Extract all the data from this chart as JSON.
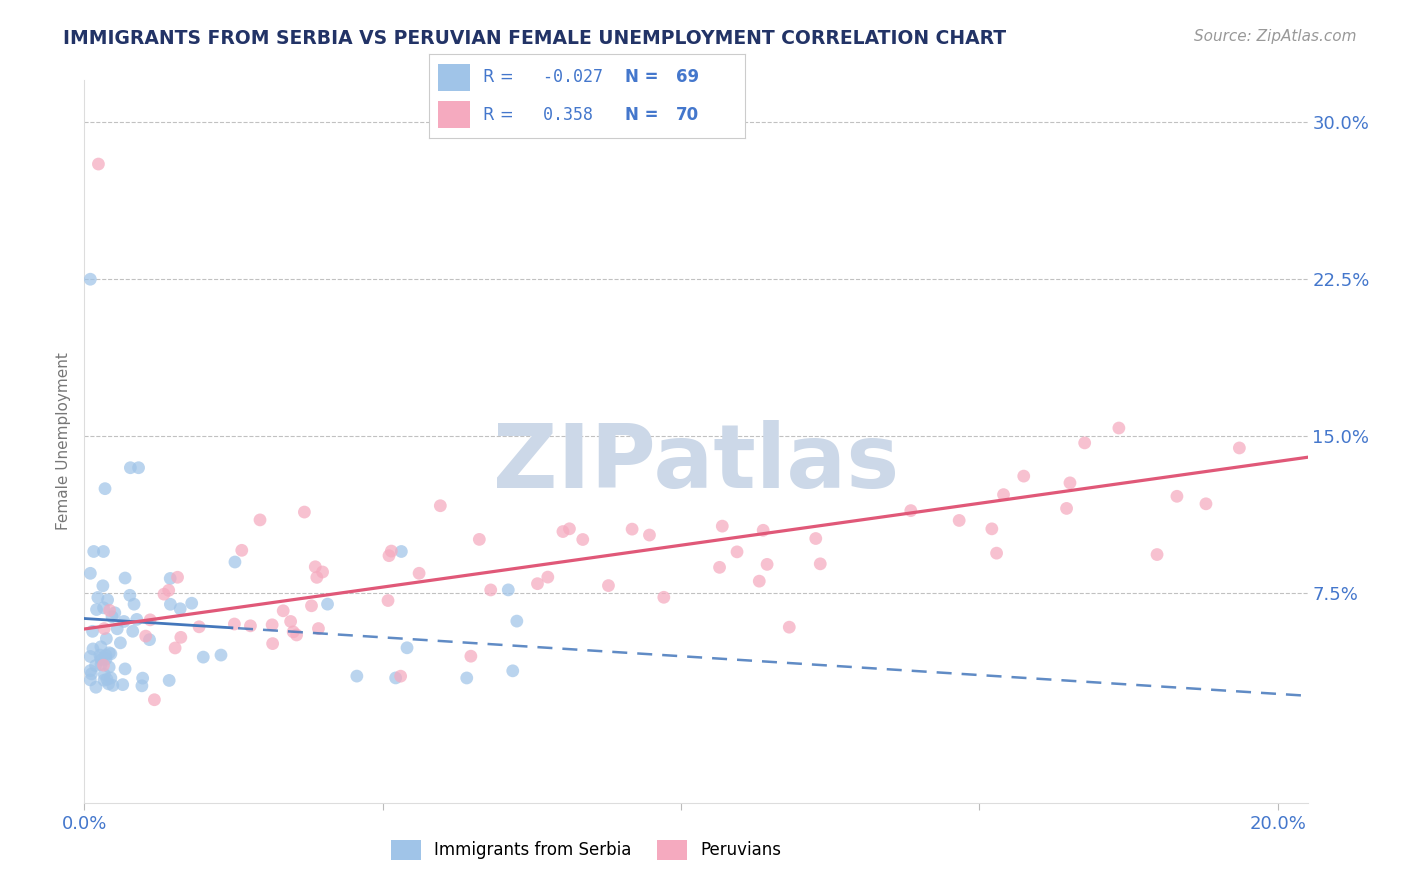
{
  "title": "IMMIGRANTS FROM SERBIA VS PERUVIAN FEMALE UNEMPLOYMENT CORRELATION CHART",
  "source": "Source: ZipAtlas.com",
  "ylabel": "Female Unemployment",
  "xlim": [
    0.0,
    0.205
  ],
  "ylim": [
    -0.025,
    0.32
  ],
  "ytick_vals": [
    0.075,
    0.15,
    0.225,
    0.3
  ],
  "ytick_labels": [
    "7.5%",
    "15.0%",
    "22.5%",
    "30.0%"
  ],
  "xtick_vals": [
    0.0,
    0.05,
    0.1,
    0.15,
    0.2
  ],
  "xtick_labels": [
    "0.0%",
    "",
    "",
    "",
    "20.0%"
  ],
  "serbia_color": "#a0c4e8",
  "peru_color": "#f5aabf",
  "serbia_R": -0.027,
  "serbia_N": 69,
  "peru_R": 0.358,
  "peru_N": 70,
  "serbia_line_color": "#4477bb",
  "peru_line_color": "#e05878",
  "serbia_line_solid_end": 0.025,
  "axis_color": "#4477cc",
  "bg_color": "#ffffff",
  "grid_color": "#bbbbbb",
  "title_color": "#223366",
  "source_color": "#999999",
  "ylabel_color": "#777777",
  "watermark_color": "#ccd8e8",
  "serbia_intercept": 0.063,
  "serbia_slope": -0.18,
  "peru_intercept": 0.058,
  "peru_slope": 0.4
}
